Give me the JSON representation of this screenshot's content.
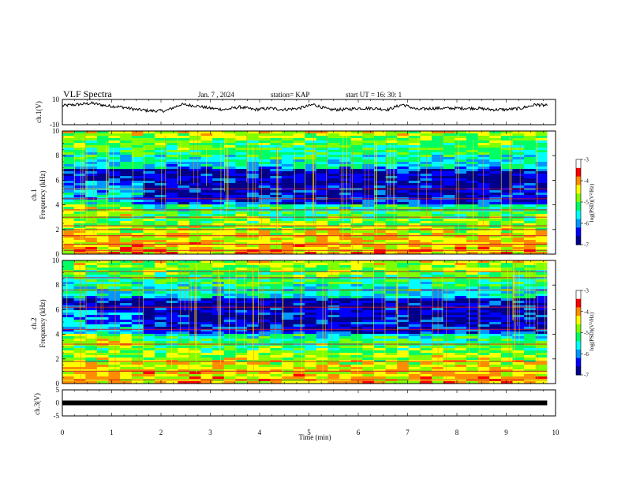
{
  "header": {
    "title": "VLF Spectra",
    "date": "Jan.  7  , 2024",
    "station": "station= KAP",
    "start": "start  UT  =   16: 30: 1"
  },
  "colors": {
    "waveform": "#000000",
    "colormap": [
      "#00008b",
      "#0000ff",
      "#0096ff",
      "#00ffff",
      "#00ff64",
      "#7fff00",
      "#ffff00",
      "#ff8c00",
      "#ff0000",
      "#ffffff"
    ]
  },
  "chart_data": [
    {
      "type": "line",
      "panel": "ch1-waveform",
      "ylabel": "ch.1(V)",
      "yticklabels": [
        "10",
        "-10"
      ],
      "ylim": [
        -10,
        10
      ],
      "xlim": [
        0,
        9.83
      ],
      "series": [
        {
          "x": [
            0,
            0.3,
            0.6,
            0.9,
            1.2,
            1.5,
            1.8,
            2.1,
            2.4,
            2.7,
            3.0,
            3.3,
            3.6,
            3.9,
            4.2,
            4.5,
            4.8,
            5.1,
            5.4,
            5.7,
            6.0,
            6.3,
            6.6,
            6.9,
            7.2,
            7.5,
            7.8,
            8.1,
            8.4,
            8.7,
            9.0,
            9.3,
            9.6,
            9.83
          ],
          "y": [
            5,
            6,
            7,
            5,
            4,
            2,
            1,
            1,
            6,
            5,
            3,
            2,
            4,
            2,
            3,
            2,
            3,
            6,
            2,
            2,
            3,
            3,
            2,
            6,
            2,
            3,
            3,
            3,
            3,
            2,
            2,
            3,
            6,
            5
          ]
        }
      ]
    },
    {
      "type": "heatmap",
      "panel": "ch1-spectrogram",
      "ylabel": "ch.1\nFrequency (kHz)",
      "yticks": [
        0,
        2,
        4,
        6,
        8,
        10
      ],
      "ylim": [
        0,
        10
      ],
      "xlim": [
        0,
        9.83
      ],
      "colorbar": {
        "label": "log(PSD)(V²/Hz)",
        "ticks": [
          -3,
          -4,
          -5,
          -6,
          -7
        ],
        "range": [
          -7,
          -3
        ]
      },
      "bands_khz": [
        0.3,
        0.8,
        1.5,
        2.0,
        2.3,
        3.0,
        3.6,
        4.5,
        5.3
      ],
      "transition_min": 1.6
    },
    {
      "type": "heatmap",
      "panel": "ch2-spectrogram",
      "ylabel": "ch.2\nFrequency (kHz)",
      "yticks": [
        0,
        2,
        4,
        6,
        8,
        10
      ],
      "ylim": [
        0,
        10
      ],
      "xlim": [
        0,
        9.83
      ],
      "colorbar": {
        "label": "log(PSD)(V²/Hz)",
        "ticks": [
          -3,
          -4,
          -5,
          -6,
          -7
        ],
        "range": [
          -7,
          -3
        ]
      },
      "bands_khz": [
        0.3,
        1.0,
        1.8,
        3.2,
        4.4,
        6.2,
        7.6,
        8.6,
        9.1
      ],
      "transition_min": 1.6
    },
    {
      "type": "line",
      "panel": "ch3-waveform",
      "ylabel": "ch.3(V)",
      "yticklabels": [
        "5",
        "0",
        "-5"
      ],
      "ylim": [
        -5,
        5
      ],
      "xlim": [
        0,
        9.83
      ],
      "series": [
        {
          "x": [
            0,
            9.83
          ],
          "y": [
            0,
            0
          ]
        }
      ]
    }
  ],
  "x_axis": {
    "label": "Time  (min)",
    "ticks": [
      "0",
      "1",
      "2",
      "3",
      "4",
      "5",
      "6",
      "7",
      "8",
      "9",
      "10"
    ],
    "range": [
      0,
      10
    ]
  }
}
